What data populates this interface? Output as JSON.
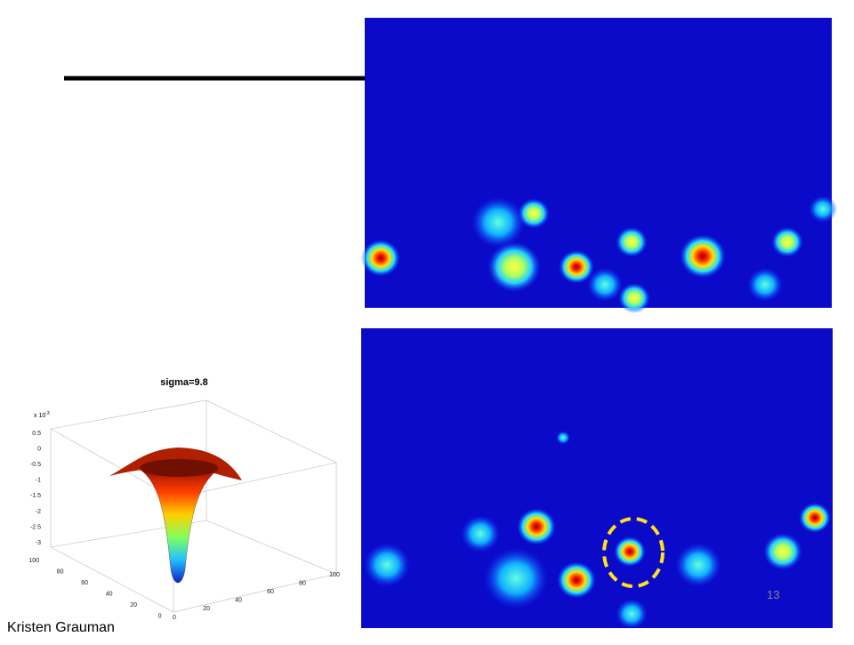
{
  "slide": {
    "author": "Kristen Grauman",
    "page_number": "13"
  },
  "figure": {
    "title": "sigma=9.8",
    "z_scale": "x 10",
    "z_exponent": "-3",
    "z_ticks": [
      "0.5",
      "0",
      "-0.5",
      "-1",
      "-1.5",
      "-2",
      "-2.5",
      "-3"
    ],
    "y_ticks": [
      "100",
      "80",
      "60",
      "40",
      "20",
      "0"
    ],
    "x_ticks": [
      "0",
      "20",
      "40",
      "60",
      "80",
      "100"
    ]
  }
}
